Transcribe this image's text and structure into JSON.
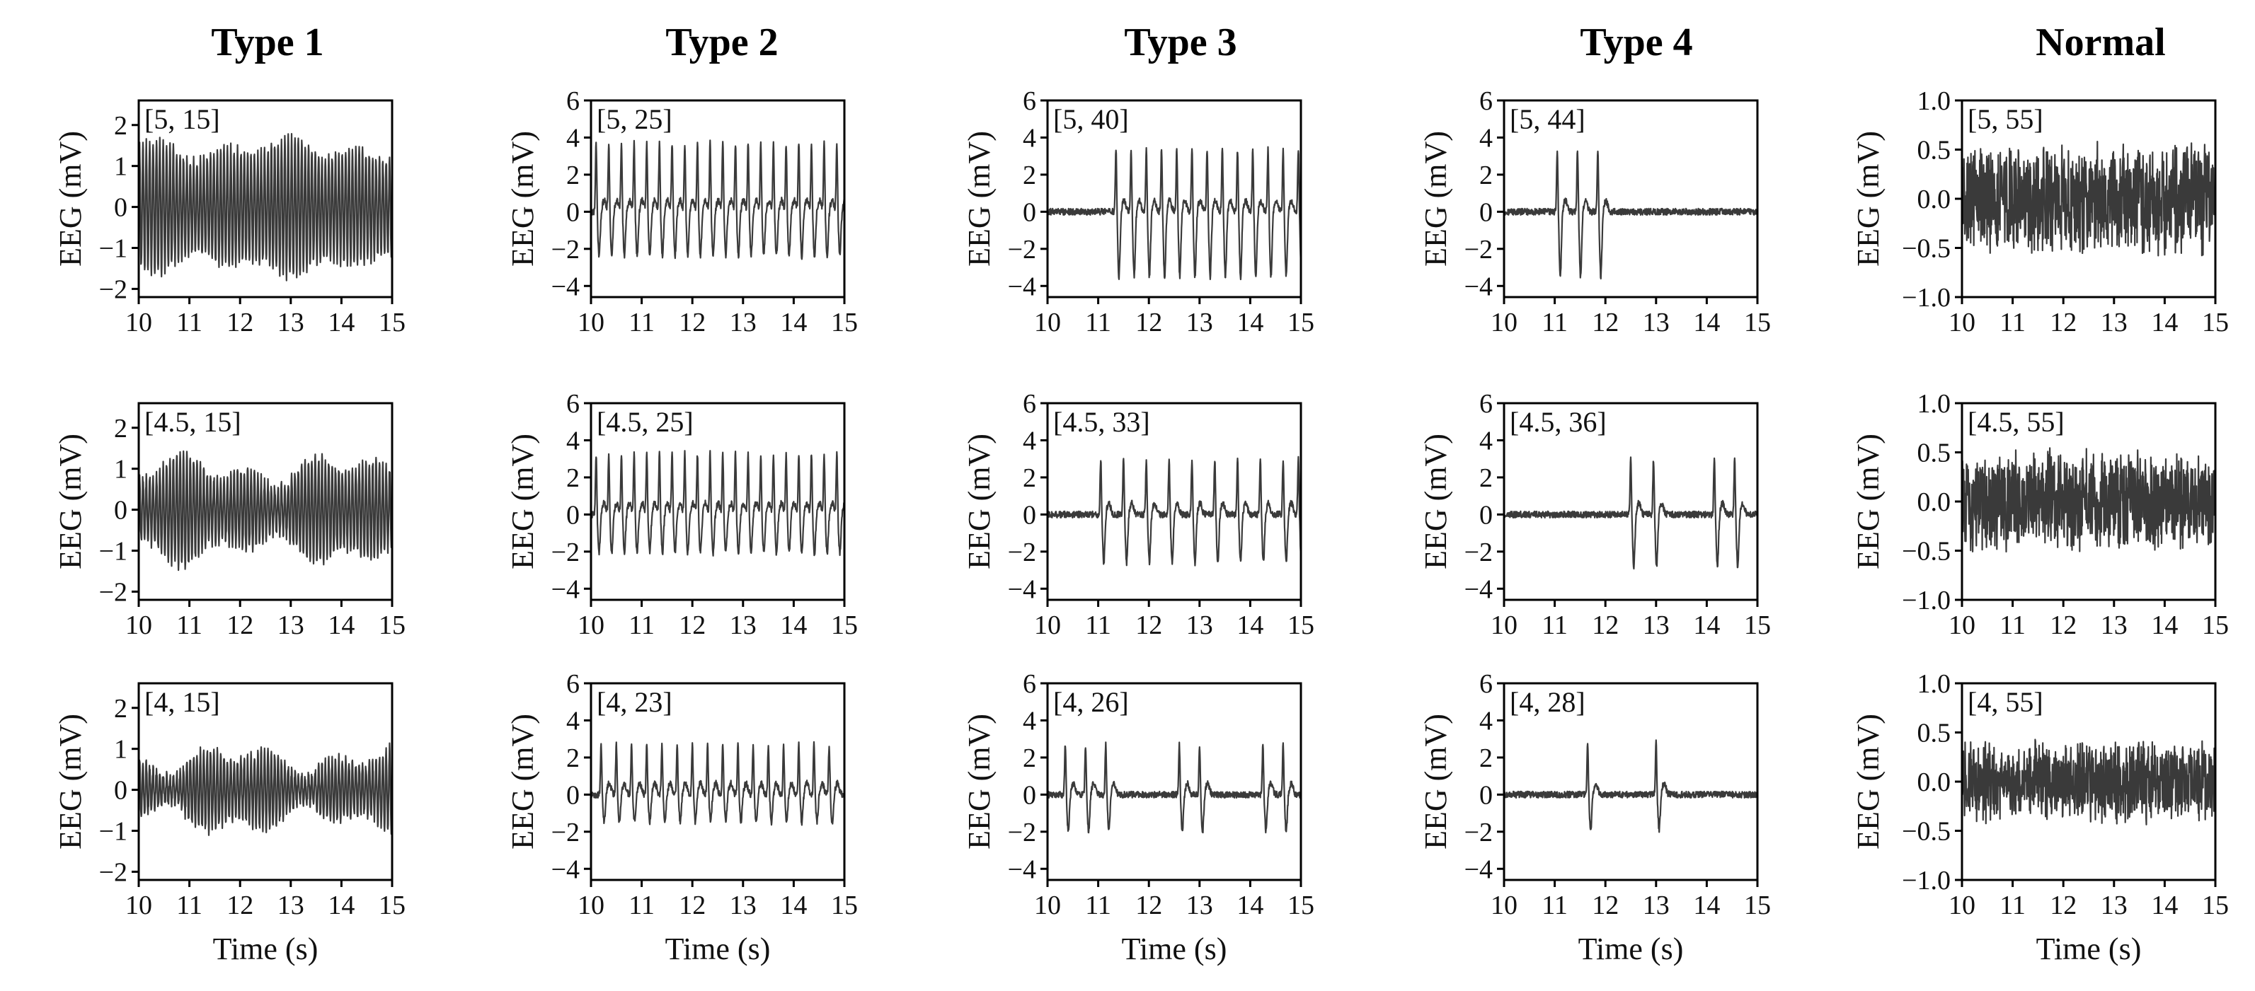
{
  "figure": {
    "column_titles": [
      "Type 1",
      "Type 2",
      "Type 3",
      "Type 4",
      "Normal"
    ],
    "xlabel": "Time (s)",
    "ylabel": "EEG (mV)"
  },
  "chart_data": [
    {
      "type": "line",
      "row": 0,
      "col": 0,
      "column_title": "Type 1",
      "annotation": "[5, 15]",
      "xlim": [
        10,
        15
      ],
      "ylim": [
        -2.2,
        2.6
      ],
      "xticks": [
        10,
        11,
        12,
        13,
        14,
        15
      ],
      "yticks": [
        -2,
        -1,
        0,
        1,
        2
      ],
      "ytick_labels": [
        "−2",
        "−1",
        "0",
        "1",
        "2"
      ],
      "xlabel": "",
      "ylabel": "EEG (mV)",
      "series": [
        {
          "name": "EEG",
          "pattern": "oscillation",
          "freq_hz": 15,
          "amplitude_mV": [
            1.1,
            1.7
          ],
          "baseline": 0
        }
      ]
    },
    {
      "type": "line",
      "row": 0,
      "col": 1,
      "column_title": "Type 2",
      "annotation": "[5, 25]",
      "xlim": [
        10,
        15
      ],
      "ylim": [
        -4.6,
        6
      ],
      "xticks": [
        10,
        11,
        12,
        13,
        14,
        15
      ],
      "yticks": [
        -4,
        -2,
        0,
        2,
        4,
        6
      ],
      "ytick_labels": [
        "−4",
        "−2",
        "0",
        "2",
        "4",
        "6"
      ],
      "xlabel": "",
      "ylabel": "EEG (mV)",
      "series": [
        {
          "name": "EEG",
          "pattern": "spike_train",
          "spike_times_s": [
            10.1,
            10.35,
            10.6,
            10.85,
            11.1,
            11.35,
            11.6,
            11.85,
            12.1,
            12.35,
            12.6,
            12.85,
            13.1,
            13.35,
            13.6,
            13.85,
            14.1,
            14.35,
            14.6,
            14.85
          ],
          "peak_mV": 3.7,
          "trough_mV": -2.4
        }
      ]
    },
    {
      "type": "line",
      "row": 0,
      "col": 2,
      "column_title": "Type 3",
      "annotation": "[5, 40]",
      "xlim": [
        10,
        15
      ],
      "ylim": [
        -4.6,
        6
      ],
      "xticks": [
        10,
        11,
        12,
        13,
        14,
        15
      ],
      "yticks": [
        -4,
        -2,
        0,
        2,
        4,
        6
      ],
      "ytick_labels": [
        "−4",
        "−2",
        "0",
        "2",
        "4",
        "6"
      ],
      "xlabel": "",
      "ylabel": "EEG (mV)",
      "series": [
        {
          "name": "EEG",
          "pattern": "spike_train",
          "spike_times_s": [
            11.35,
            11.65,
            11.95,
            12.25,
            12.55,
            12.85,
            13.15,
            13.45,
            13.75,
            14.05,
            14.35,
            14.65,
            14.95
          ],
          "peak_mV": 3.4,
          "trough_mV": -3.5
        }
      ]
    },
    {
      "type": "line",
      "row": 0,
      "col": 3,
      "column_title": "Type 4",
      "annotation": "[5, 44]",
      "xlim": [
        10,
        15
      ],
      "ylim": [
        -4.6,
        6
      ],
      "xticks": [
        10,
        11,
        12,
        13,
        14,
        15
      ],
      "yticks": [
        -4,
        -2,
        0,
        2,
        4,
        6
      ],
      "ytick_labels": [
        "−4",
        "−2",
        "0",
        "2",
        "4",
        "6"
      ],
      "xlabel": "",
      "ylabel": "EEG (mV)",
      "series": [
        {
          "name": "EEG",
          "pattern": "spike_train",
          "spike_times_s": [
            11.05,
            11.45,
            11.85
          ],
          "peak_mV": 3.4,
          "trough_mV": -3.5
        }
      ]
    },
    {
      "type": "line",
      "row": 0,
      "col": 4,
      "column_title": "Normal",
      "annotation": "[5, 55]",
      "xlim": [
        10,
        15
      ],
      "ylim": [
        -1,
        1
      ],
      "xticks": [
        10,
        11,
        12,
        13,
        14,
        15
      ],
      "yticks": [
        -1,
        -0.5,
        0,
        0.5,
        1
      ],
      "ytick_labels": [
        "−1.0",
        "−0.5",
        "0.0",
        "0.5",
        "1.0"
      ],
      "xlabel": "",
      "ylabel": "EEG (mV)",
      "series": [
        {
          "name": "EEG",
          "pattern": "noise",
          "amplitude_mV": 0.6,
          "baseline": 0
        }
      ]
    },
    {
      "type": "line",
      "row": 1,
      "col": 0,
      "column_title": "Type 1",
      "annotation": "[4.5, 15]",
      "xlim": [
        10,
        15
      ],
      "ylim": [
        -2.2,
        2.6
      ],
      "xticks": [
        10,
        11,
        12,
        13,
        14,
        15
      ],
      "yticks": [
        -2,
        -1,
        0,
        1,
        2
      ],
      "ytick_labels": [
        "−2",
        "−1",
        "0",
        "1",
        "2"
      ],
      "xlabel": "",
      "ylabel": "EEG (mV)",
      "series": [
        {
          "name": "EEG",
          "pattern": "oscillation",
          "freq_hz": 15,
          "amplitude_mV": [
            0.5,
            1.4
          ],
          "baseline": 0
        }
      ]
    },
    {
      "type": "line",
      "row": 1,
      "col": 1,
      "column_title": "Type 2",
      "annotation": "[4.5, 25]",
      "xlim": [
        10,
        15
      ],
      "ylim": [
        -4.6,
        6
      ],
      "xticks": [
        10,
        11,
        12,
        13,
        14,
        15
      ],
      "yticks": [
        -4,
        -2,
        0,
        2,
        4,
        6
      ],
      "ytick_labels": [
        "−4",
        "−2",
        "0",
        "2",
        "4",
        "6"
      ],
      "xlabel": "",
      "ylabel": "EEG (mV)",
      "series": [
        {
          "name": "EEG",
          "pattern": "spike_train",
          "spike_times_s": [
            10.1,
            10.35,
            10.6,
            10.85,
            11.1,
            11.35,
            11.6,
            11.85,
            12.1,
            12.35,
            12.6,
            12.85,
            13.1,
            13.35,
            13.6,
            13.85,
            14.1,
            14.35,
            14.6,
            14.85
          ],
          "peak_mV": 3.3,
          "trough_mV": -2.1
        }
      ]
    },
    {
      "type": "line",
      "row": 1,
      "col": 2,
      "column_title": "Type 3",
      "annotation": "[4.5, 33]",
      "xlim": [
        10,
        15
      ],
      "ylim": [
        -4.6,
        6
      ],
      "xticks": [
        10,
        11,
        12,
        13,
        14,
        15
      ],
      "yticks": [
        -4,
        -2,
        0,
        2,
        4,
        6
      ],
      "ytick_labels": [
        "−4",
        "−2",
        "0",
        "2",
        "4",
        "6"
      ],
      "xlabel": "",
      "ylabel": "EEG (mV)",
      "series": [
        {
          "name": "EEG",
          "pattern": "spike_train",
          "spike_times_s": [
            11.05,
            11.5,
            11.95,
            12.4,
            12.85,
            13.3,
            13.75,
            14.2,
            14.65,
            14.95
          ],
          "peak_mV": 3.0,
          "trough_mV": -2.6
        }
      ]
    },
    {
      "type": "line",
      "row": 1,
      "col": 3,
      "column_title": "Type 4",
      "annotation": "[4.5, 36]",
      "xlim": [
        10,
        15
      ],
      "ylim": [
        -4.6,
        6
      ],
      "xticks": [
        10,
        11,
        12,
        13,
        14,
        15
      ],
      "yticks": [
        -4,
        -2,
        0,
        2,
        4,
        6
      ],
      "ytick_labels": [
        "−4",
        "−2",
        "0",
        "2",
        "4",
        "6"
      ],
      "xlabel": "",
      "ylabel": "EEG (mV)",
      "series": [
        {
          "name": "EEG",
          "pattern": "spike_train",
          "spike_times_s": [
            12.5,
            12.95,
            14.15,
            14.55
          ],
          "peak_mV": 3.0,
          "trough_mV": -2.8
        }
      ]
    },
    {
      "type": "line",
      "row": 1,
      "col": 4,
      "column_title": "Normal",
      "annotation": "[4.5, 55]",
      "xlim": [
        10,
        15
      ],
      "ylim": [
        -1,
        1
      ],
      "xticks": [
        10,
        11,
        12,
        13,
        14,
        15
      ],
      "yticks": [
        -1,
        -0.5,
        0,
        0.5,
        1
      ],
      "ytick_labels": [
        "−1.0",
        "−0.5",
        "0.0",
        "0.5",
        "1.0"
      ],
      "xlabel": "",
      "ylabel": "EEG (mV)",
      "series": [
        {
          "name": "EEG",
          "pattern": "noise",
          "amplitude_mV": 0.55,
          "baseline": 0
        }
      ]
    },
    {
      "type": "line",
      "row": 2,
      "col": 0,
      "column_title": "Type 1",
      "annotation": "[4, 15]",
      "xlim": [
        10,
        15
      ],
      "ylim": [
        -2.2,
        2.6
      ],
      "xticks": [
        10,
        11,
        12,
        13,
        14,
        15
      ],
      "yticks": [
        -2,
        -1,
        0,
        1,
        2
      ],
      "ytick_labels": [
        "−2",
        "−1",
        "0",
        "1",
        "2"
      ],
      "xlabel": "Time (s)",
      "ylabel": "EEG (mV)",
      "series": [
        {
          "name": "EEG",
          "pattern": "oscillation",
          "freq_hz": 15,
          "amplitude_mV": [
            0.3,
            1.1
          ],
          "baseline": 0
        }
      ]
    },
    {
      "type": "line",
      "row": 2,
      "col": 1,
      "column_title": "Type 2",
      "annotation": "[4, 23]",
      "xlim": [
        10,
        15
      ],
      "ylim": [
        -4.6,
        6
      ],
      "xticks": [
        10,
        11,
        12,
        13,
        14,
        15
      ],
      "yticks": [
        -4,
        -2,
        0,
        2,
        4,
        6
      ],
      "ytick_labels": [
        "−4",
        "−2",
        "0",
        "2",
        "4",
        "6"
      ],
      "xlabel": "Time (s)",
      "ylabel": "EEG (mV)",
      "series": [
        {
          "name": "EEG",
          "pattern": "spike_train",
          "spike_times_s": [
            10.2,
            10.5,
            10.8,
            11.1,
            11.4,
            11.7,
            12.0,
            12.3,
            12.6,
            12.9,
            13.2,
            13.5,
            13.8,
            14.1,
            14.4,
            14.7
          ],
          "peak_mV": 2.7,
          "trough_mV": -1.5
        }
      ]
    },
    {
      "type": "line",
      "row": 2,
      "col": 2,
      "column_title": "Type 3",
      "annotation": "[4, 26]",
      "xlim": [
        10,
        15
      ],
      "ylim": [
        -4.6,
        6
      ],
      "xticks": [
        10,
        11,
        12,
        13,
        14,
        15
      ],
      "yticks": [
        -4,
        -2,
        0,
        2,
        4,
        6
      ],
      "ytick_labels": [
        "−4",
        "−2",
        "0",
        "2",
        "4",
        "6"
      ],
      "xlabel": "Time (s)",
      "ylabel": "EEG (mV)",
      "series": [
        {
          "name": "EEG",
          "pattern": "spike_train",
          "spike_times_s": [
            10.35,
            10.75,
            11.15,
            12.6,
            13.0,
            14.25,
            14.65
          ],
          "peak_mV": 2.7,
          "trough_mV": -2.0
        }
      ]
    },
    {
      "type": "line",
      "row": 2,
      "col": 3,
      "column_title": "Type 4",
      "annotation": "[4, 28]",
      "xlim": [
        10,
        15
      ],
      "ylim": [
        -4.6,
        6
      ],
      "xticks": [
        10,
        11,
        12,
        13,
        14,
        15
      ],
      "yticks": [
        -4,
        -2,
        0,
        2,
        4,
        6
      ],
      "ytick_labels": [
        "−4",
        "−2",
        "0",
        "2",
        "4",
        "6"
      ],
      "xlabel": "Time (s)",
      "ylabel": "EEG (mV)",
      "series": [
        {
          "name": "EEG",
          "pattern": "spike_train",
          "spike_times_s": [
            11.65,
            13.0
          ],
          "peak_mV": 2.8,
          "trough_mV": -1.9
        }
      ]
    },
    {
      "type": "line",
      "row": 2,
      "col": 4,
      "column_title": "Normal",
      "annotation": "[4, 55]",
      "xlim": [
        10,
        15
      ],
      "ylim": [
        -1,
        1
      ],
      "xticks": [
        10,
        11,
        12,
        13,
        14,
        15
      ],
      "yticks": [
        -1,
        -0.5,
        0,
        0.5,
        1
      ],
      "ytick_labels": [
        "−1.0",
        "−0.5",
        "0.0",
        "0.5",
        "1.0"
      ],
      "xlabel": "Time (s)",
      "ylabel": "EEG (mV)",
      "series": [
        {
          "name": "EEG",
          "pattern": "noise",
          "amplitude_mV": 0.45,
          "baseline": 0
        }
      ]
    }
  ]
}
